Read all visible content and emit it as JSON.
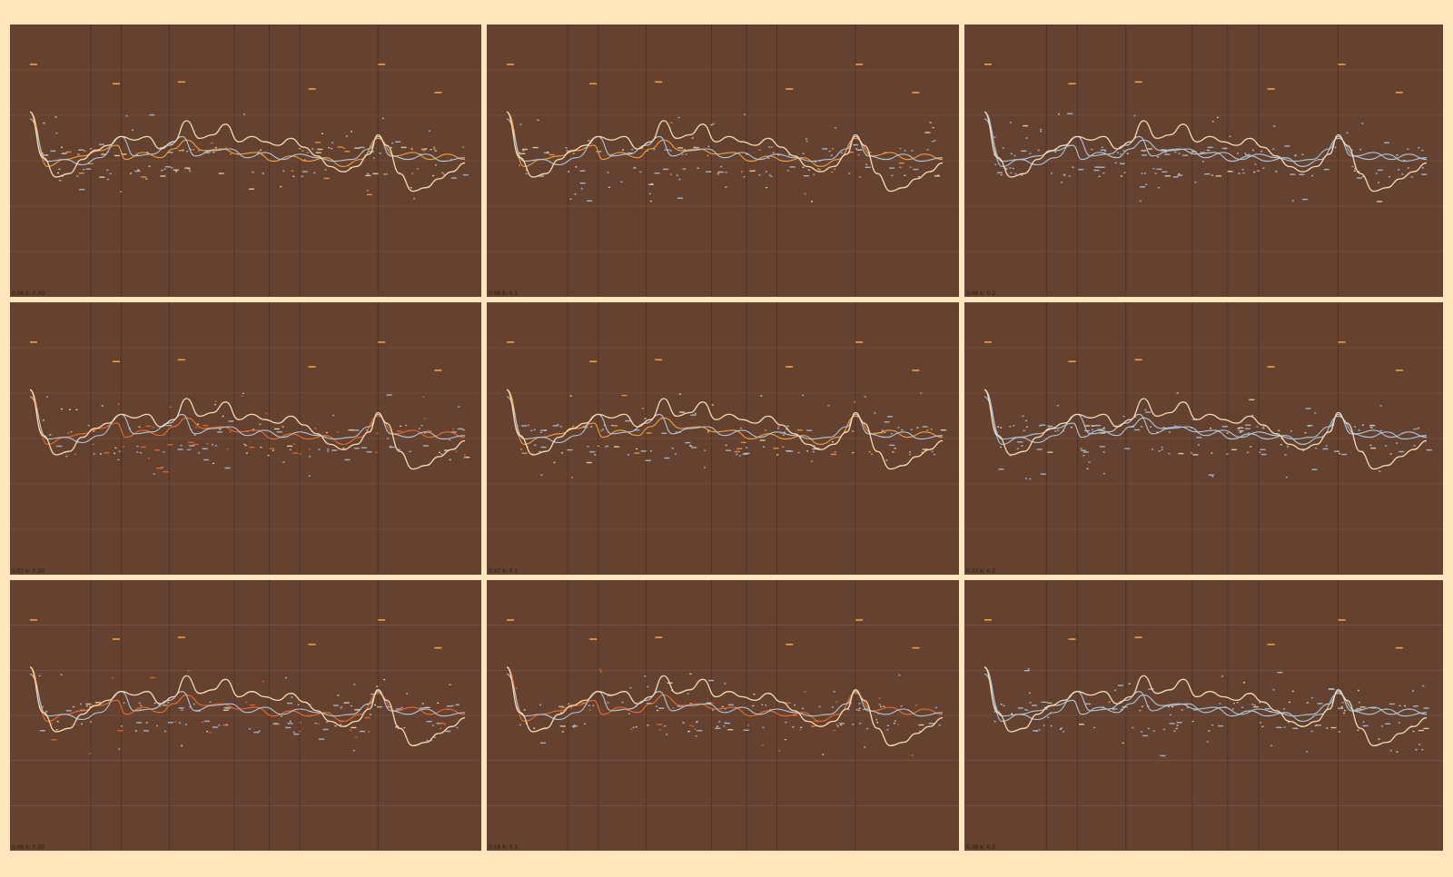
{
  "theme": {
    "background": "#65412f",
    "frame": "#ffe7bd",
    "gridline": "#7e5b4a",
    "vline": "#2b1a12",
    "series_colors": {
      "cream": "#f7dbb1",
      "orange": "#f2a13a",
      "blue": "#a9c9df",
      "red": "#f06a25"
    }
  },
  "layout_grid": {
    "rows": 3,
    "cols": 3
  },
  "panels": [
    {
      "title": "0.06 k: 0.00"
    },
    {
      "title": "0.06 k: 0.1"
    },
    {
      "title": "0.06 k: 0.2"
    },
    {
      "title": "0.07 k: 0.00"
    },
    {
      "title": "0.07 k: 0.1"
    },
    {
      "title": "0.07 k: 0.2"
    },
    {
      "title": "0.08 k: 0.00"
    },
    {
      "title": "0.08 k: 0.1"
    },
    {
      "title": "0.08 k: 0.2"
    }
  ],
  "chart_data": {
    "type": "line",
    "grid": true,
    "xlim": [
      0,
      1
    ],
    "ylim": [
      0,
      1
    ],
    "event_x": [
      0.14,
      0.21,
      0.32,
      0.47,
      0.55,
      0.62,
      0.8
    ],
    "shared_cream_curve": [
      [
        0.0,
        0.71
      ],
      [
        0.03,
        0.45
      ],
      [
        0.06,
        0.34
      ],
      [
        0.09,
        0.36
      ],
      [
        0.12,
        0.44
      ],
      [
        0.15,
        0.49
      ],
      [
        0.18,
        0.52
      ],
      [
        0.21,
        0.57
      ],
      [
        0.24,
        0.55
      ],
      [
        0.27,
        0.57
      ],
      [
        0.3,
        0.5
      ],
      [
        0.33,
        0.54
      ],
      [
        0.36,
        0.66
      ],
      [
        0.39,
        0.56
      ],
      [
        0.42,
        0.58
      ],
      [
        0.45,
        0.64
      ],
      [
        0.48,
        0.54
      ],
      [
        0.51,
        0.57
      ],
      [
        0.54,
        0.54
      ],
      [
        0.57,
        0.52
      ],
      [
        0.6,
        0.56
      ],
      [
        0.63,
        0.51
      ],
      [
        0.66,
        0.46
      ],
      [
        0.69,
        0.4
      ],
      [
        0.72,
        0.37
      ],
      [
        0.75,
        0.4
      ],
      [
        0.78,
        0.47
      ],
      [
        0.8,
        0.58
      ],
      [
        0.82,
        0.52
      ],
      [
        0.85,
        0.36
      ],
      [
        0.88,
        0.26
      ],
      [
        0.91,
        0.28
      ],
      [
        0.94,
        0.33
      ],
      [
        0.97,
        0.37
      ],
      [
        1.0,
        0.42
      ]
    ],
    "series": [
      {
        "color_key": "orange",
        "points": [
          [
            0.0,
            0.71
          ],
          [
            0.04,
            0.4
          ],
          [
            0.08,
            0.44
          ],
          [
            0.12,
            0.46
          ],
          [
            0.16,
            0.49
          ],
          [
            0.2,
            0.52
          ],
          [
            0.22,
            0.44
          ],
          [
            0.26,
            0.48
          ],
          [
            0.3,
            0.45
          ],
          [
            0.33,
            0.5
          ],
          [
            0.36,
            0.55
          ],
          [
            0.4,
            0.49
          ],
          [
            0.44,
            0.5
          ],
          [
            0.48,
            0.47
          ],
          [
            0.52,
            0.48
          ],
          [
            0.56,
            0.43
          ],
          [
            0.6,
            0.46
          ],
          [
            0.64,
            0.43
          ],
          [
            0.68,
            0.45
          ],
          [
            0.72,
            0.4
          ],
          [
            0.76,
            0.44
          ],
          [
            0.8,
            0.56
          ],
          [
            0.84,
            0.46
          ],
          [
            0.88,
            0.48
          ],
          [
            0.92,
            0.44
          ],
          [
            0.96,
            0.47
          ],
          [
            1.0,
            0.44
          ]
        ]
      },
      {
        "color_key": "blue",
        "points": [
          [
            0.0,
            0.67
          ],
          [
            0.04,
            0.43
          ],
          [
            0.08,
            0.44
          ],
          [
            0.12,
            0.41
          ],
          [
            0.16,
            0.45
          ],
          [
            0.21,
            0.57
          ],
          [
            0.24,
            0.46
          ],
          [
            0.28,
            0.47
          ],
          [
            0.32,
            0.52
          ],
          [
            0.35,
            0.57
          ],
          [
            0.38,
            0.46
          ],
          [
            0.42,
            0.49
          ],
          [
            0.46,
            0.5
          ],
          [
            0.5,
            0.45
          ],
          [
            0.54,
            0.48
          ],
          [
            0.58,
            0.44
          ],
          [
            0.62,
            0.47
          ],
          [
            0.66,
            0.45
          ],
          [
            0.7,
            0.43
          ],
          [
            0.74,
            0.44
          ],
          [
            0.78,
            0.5
          ],
          [
            0.8,
            0.57
          ],
          [
            0.83,
            0.46
          ],
          [
            0.87,
            0.44
          ],
          [
            0.91,
            0.47
          ],
          [
            0.95,
            0.43
          ],
          [
            1.0,
            0.45
          ]
        ]
      }
    ],
    "panel_variants": [
      {
        "primary": "orange"
      },
      {
        "primary": "orange"
      },
      {
        "primary": "blue"
      },
      {
        "primary": "red"
      },
      {
        "primary": "orange"
      },
      {
        "primary": "blue"
      },
      {
        "primary": "red"
      },
      {
        "primary": "red"
      },
      {
        "primary": "blue"
      }
    ]
  }
}
